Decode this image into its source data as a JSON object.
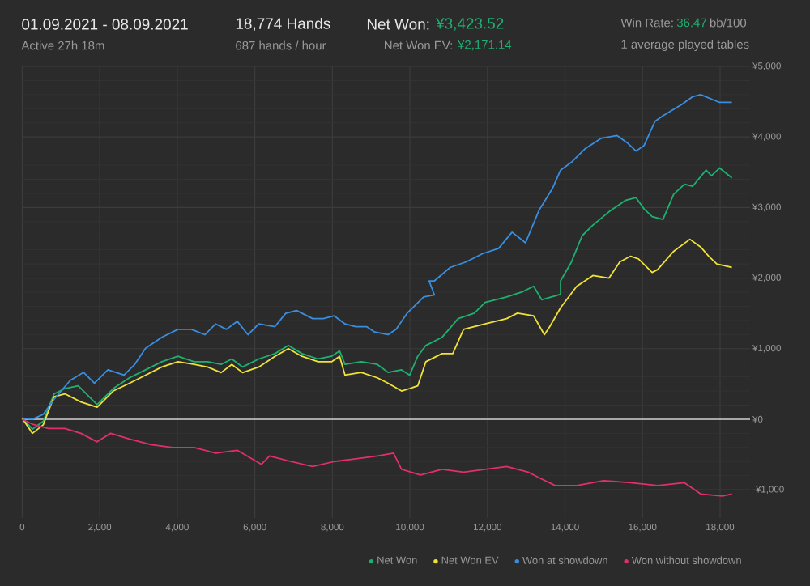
{
  "chart_data": {
    "type": "line",
    "title": "01.09.2021 - 08.09.2021",
    "subtitle": "Active 27h 18m",
    "annotations": [
      "18,774 Hands",
      "687 hands / hour",
      "Net Won:",
      "¥3,423.52",
      "Net Won EV:",
      "¥2,171.14",
      "Win Rate:",
      "36.47",
      "bb/100",
      "1 average played tables"
    ],
    "xlim": [
      0,
      18774
    ],
    "ylim": [
      -1400,
      5000
    ],
    "xticks": [
      0,
      {
        "value": 2000,
        "label": "2,000"
      },
      {
        "value": 4000,
        "label": "4,000"
      },
      {
        "value": 6000,
        "label": "6,000"
      },
      {
        "value": 8000,
        "label": "8,000"
      },
      {
        "value": 10000,
        "label": "10,000"
      },
      {
        "value": 12000,
        "label": "12,000"
      },
      {
        "value": 14000,
        "label": "14,000"
      },
      {
        "value": 16000,
        "label": "16,000"
      },
      {
        "value": 18000,
        "label": "18,000"
      }
    ],
    "yticks": [
      {
        "value": -1000,
        "label": "-¥1,000"
      },
      {
        "value": 0,
        "label": "¥0"
      },
      {
        "value": 1000,
        "label": "¥1,000"
      },
      {
        "value": 2000,
        "label": "¥2,000"
      },
      {
        "value": 3000,
        "label": "¥3,000"
      },
      {
        "value": 4000,
        "label": "¥4,000"
      },
      {
        "value": 5000,
        "label": "¥5,000"
      }
    ],
    "grid": true,
    "legend": "bottom right",
    "ref_lines": [
      {
        "axis": "y",
        "value": 0,
        "color": "#d0d0d0"
      }
    ],
    "series": [
      {
        "name": "Net Won",
        "color": "#1eb071",
        "x": [
          0,
          264,
          542,
          820,
          1100,
          1446,
          1932,
          2349,
          2766,
          3183,
          3600,
          4017,
          4434,
          4782,
          5129,
          5407,
          5685,
          6102,
          6519,
          6866,
          7214,
          7631,
          7978,
          8187,
          8326,
          8743,
          9160,
          9438,
          9785,
          9994,
          10202,
          10411,
          10828,
          11245,
          11662,
          11940,
          12496,
          12913,
          13191,
          13400,
          13886,
          13886,
          14164,
          14442,
          14720,
          15137,
          15554,
          15832,
          16041,
          16249,
          16527,
          16805,
          17083,
          17291,
          17639,
          17778,
          17986,
          18306
        ],
        "values": [
          14,
          -140,
          -30,
          358,
          435,
          473,
          206,
          435,
          587,
          700,
          815,
          892,
          815,
          815,
          777,
          854,
          740,
          854,
          930,
          1045,
          930,
          854,
          892,
          968,
          777,
          815,
          777,
          663,
          700,
          625,
          892,
          1045,
          1160,
          1426,
          1503,
          1655,
          1732,
          1808,
          1884,
          1693,
          1770,
          1960,
          2225,
          2600,
          2750,
          2940,
          3100,
          3140,
          2980,
          2870,
          2830,
          3190,
          3330,
          3300,
          3530,
          3450,
          3560,
          3420
        ]
      },
      {
        "name": "Net Won EV",
        "color": "#f0e236",
        "x": [
          0,
          264,
          542,
          820,
          1100,
          1515,
          1932,
          2349,
          2766,
          3183,
          3600,
          4017,
          4434,
          4782,
          5129,
          5407,
          5685,
          6102,
          6519,
          6866,
          7214,
          7631,
          7978,
          8187,
          8326,
          8743,
          9160,
          9438,
          9785,
          9994,
          10202,
          10411,
          10828,
          11106,
          11384,
          11940,
          12496,
          12774,
          13191,
          13469,
          13608,
          13886,
          14303,
          14720,
          15137,
          15415,
          15693,
          15901,
          16249,
          16388,
          16805,
          17222,
          17500,
          17708,
          17917,
          18306
        ],
        "values": [
          14,
          -200,
          -80,
          320,
          360,
          245,
          170,
          400,
          510,
          625,
          740,
          815,
          777,
          740,
          660,
          777,
          660,
          740,
          892,
          1000,
          892,
          815,
          815,
          892,
          625,
          663,
          587,
          510,
          400,
          435,
          473,
          815,
          930,
          930,
          1274,
          1350,
          1426,
          1503,
          1465,
          1198,
          1312,
          1579,
          1884,
          2036,
          2000,
          2230,
          2310,
          2270,
          2080,
          2120,
          2380,
          2550,
          2440,
          2310,
          2200,
          2150
        ]
      },
      {
        "name": "Won at showdown",
        "color": "#3a8ee0",
        "x": [
          0,
          264,
          542,
          820,
          1237,
          1585,
          1863,
          2210,
          2627,
          2905,
          3183,
          3600,
          4017,
          4365,
          4712,
          4990,
          5268,
          5546,
          5824,
          6102,
          6519,
          6797,
          7075,
          7492,
          7770,
          8048,
          8326,
          8604,
          8882,
          9090,
          9438,
          9646,
          9924,
          10355,
          10633,
          10494,
          10633,
          11037,
          11454,
          11871,
          12288,
          12635,
          12983,
          13330,
          13678,
          13886,
          14164,
          14511,
          14928,
          15345,
          15623,
          15832,
          16041,
          16319,
          16527,
          17013,
          17291,
          17500,
          17986,
          18264,
          18306
        ],
        "values": [
          14,
          0,
          68,
          280,
          550,
          664,
          512,
          700,
          625,
          778,
          1007,
          1160,
          1274,
          1274,
          1198,
          1350,
          1274,
          1388,
          1198,
          1350,
          1312,
          1500,
          1540,
          1426,
          1426,
          1465,
          1350,
          1312,
          1312,
          1236,
          1198,
          1274,
          1500,
          1732,
          1760,
          1960,
          1960,
          2150,
          2230,
          2345,
          2420,
          2650,
          2500,
          2960,
          3270,
          3530,
          3640,
          3830,
          3980,
          4020,
          3910,
          3800,
          3880,
          4220,
          4300,
          4460,
          4570,
          4600,
          4490,
          4490,
          4490
        ]
      },
      {
        "name": "Won without showdown",
        "color": "#e0306a",
        "x": [
          0,
          264,
          681,
          1098,
          1515,
          1932,
          2279,
          2766,
          3322,
          3878,
          4434,
          4990,
          5546,
          6171,
          6380,
          6936,
          7492,
          8048,
          8604,
          9160,
          9577,
          9785,
          10272,
          10828,
          11384,
          11940,
          12496,
          13052,
          13330,
          13747,
          14303,
          14998,
          15693,
          16388,
          17083,
          17500,
          18056,
          18306
        ],
        "values": [
          0,
          -70,
          -130,
          -130,
          -200,
          -320,
          -200,
          -280,
          -360,
          -400,
          -400,
          -480,
          -440,
          -640,
          -520,
          -600,
          -670,
          -600,
          -560,
          -520,
          -480,
          -710,
          -790,
          -710,
          -750,
          -710,
          -670,
          -750,
          -830,
          -940,
          -940,
          -870,
          -900,
          -940,
          -900,
          -1060,
          -1090,
          -1060
        ]
      }
    ]
  }
}
